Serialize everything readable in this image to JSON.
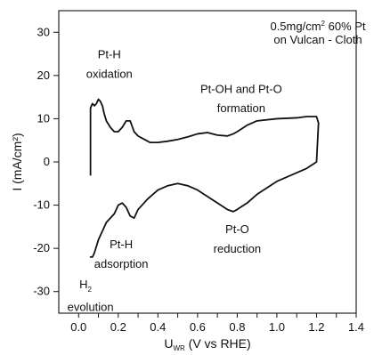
{
  "chart_data": {
    "type": "line",
    "title": "",
    "subtitle": "",
    "xlabel": {
      "main": "U",
      "subscript": "WR",
      "suffix": " (V vs RHE)"
    },
    "ylabel": {
      "text": "I (mA/cm²)"
    },
    "xlim": [
      -0.1,
      1.4
    ],
    "ylim": [
      -35,
      35
    ],
    "x_ticks": [
      -0.0,
      0.1,
      0.2,
      0.3,
      0.4,
      0.5,
      0.6,
      0.7,
      0.8,
      0.9,
      1.0,
      1.1,
      1.2,
      1.3,
      1.4
    ],
    "x_tick_labels": [
      "0.0",
      "0.2",
      "0.4",
      "0.6",
      "0.8",
      "1.0",
      "1.2",
      "1.4"
    ],
    "x_labeled_ticks": [
      0.0,
      0.2,
      0.4,
      0.6,
      0.8,
      1.0,
      1.2,
      1.4
    ],
    "y_ticks": [
      -30,
      -20,
      -10,
      0,
      10,
      20,
      30
    ],
    "y_tick_labels": [
      "-30",
      "-20",
      "-10",
      "0",
      "10",
      "20",
      "30"
    ],
    "grid": false,
    "legend": "none",
    "series": [
      {
        "name": "",
        "color": "#111111",
        "x": [
          0.06,
          0.06,
          0.07,
          0.08,
          0.09,
          0.1,
          0.11,
          0.12,
          0.13,
          0.14,
          0.16,
          0.18,
          0.2,
          0.22,
          0.24,
          0.26,
          0.28,
          0.3,
          0.32,
          0.34,
          0.36,
          0.4,
          0.45,
          0.5,
          0.55,
          0.6,
          0.65,
          0.7,
          0.75,
          0.78,
          0.8,
          0.85,
          0.9,
          1.0,
          1.1,
          1.15,
          1.2,
          1.21,
          1.2,
          1.15,
          1.1,
          1.0,
          0.95,
          0.9,
          0.85,
          0.8,
          0.78,
          0.75,
          0.7,
          0.65,
          0.6,
          0.55,
          0.5,
          0.45,
          0.4,
          0.35,
          0.3,
          0.28,
          0.26,
          0.24,
          0.22,
          0.2,
          0.18,
          0.16,
          0.14,
          0.12,
          0.1,
          0.09,
          0.08,
          0.07,
          0.06
        ],
        "y": [
          -3,
          12.5,
          13.5,
          13.0,
          13.5,
          14.5,
          14.0,
          13.0,
          11.0,
          9.5,
          8.0,
          7.0,
          7.0,
          8.0,
          9.5,
          9.5,
          7.0,
          6.0,
          5.5,
          5.0,
          4.5,
          4.5,
          4.8,
          5.2,
          5.8,
          6.5,
          6.8,
          6.2,
          6.0,
          6.5,
          7.0,
          8.5,
          9.5,
          10.0,
          10.2,
          10.5,
          10.5,
          9.0,
          0.0,
          -1.5,
          -2.5,
          -4.5,
          -6.0,
          -7.5,
          -9.5,
          -11.0,
          -11.5,
          -11.0,
          -9.5,
          -8.0,
          -6.5,
          -5.5,
          -5.0,
          -5.5,
          -6.5,
          -8.5,
          -11.0,
          -13.0,
          -12.5,
          -10.5,
          -9.5,
          -10.0,
          -12.0,
          -13.0,
          -14.0,
          -16.0,
          -18.0,
          -19.5,
          -21.0,
          -22.0,
          -22.0
        ]
      }
    ],
    "annotations": [
      {
        "text": "Pt-H",
        "x": 0.155,
        "y": 24.0
      },
      {
        "text": "oxidation",
        "x": 0.155,
        "y": 19.5
      },
      {
        "text": "Pt-OH and Pt-O",
        "x": 0.82,
        "y": 16.0
      },
      {
        "text": "formation",
        "x": 0.82,
        "y": 11.5
      },
      {
        "text": "Pt-O",
        "x": 0.8,
        "y": -16.5
      },
      {
        "text": "reduction",
        "x": 0.8,
        "y": -21.0
      },
      {
        "text": "Pt-H",
        "x": 0.215,
        "y": -20.0
      },
      {
        "text": "adsorption",
        "x": 0.215,
        "y": -24.5
      },
      {
        "text": "evolution",
        "x": 0.06,
        "y": -34.5
      }
    ],
    "header_lines": [
      {
        "prefix": "0.5mg/cm",
        "sup": "2",
        "suffix": " 60% Pt"
      },
      {
        "text": "on Vulcan - Cloth"
      }
    ],
    "h2_label": {
      "main": "H",
      "sub": "2",
      "x": 0.035,
      "y": -29.2
    }
  }
}
